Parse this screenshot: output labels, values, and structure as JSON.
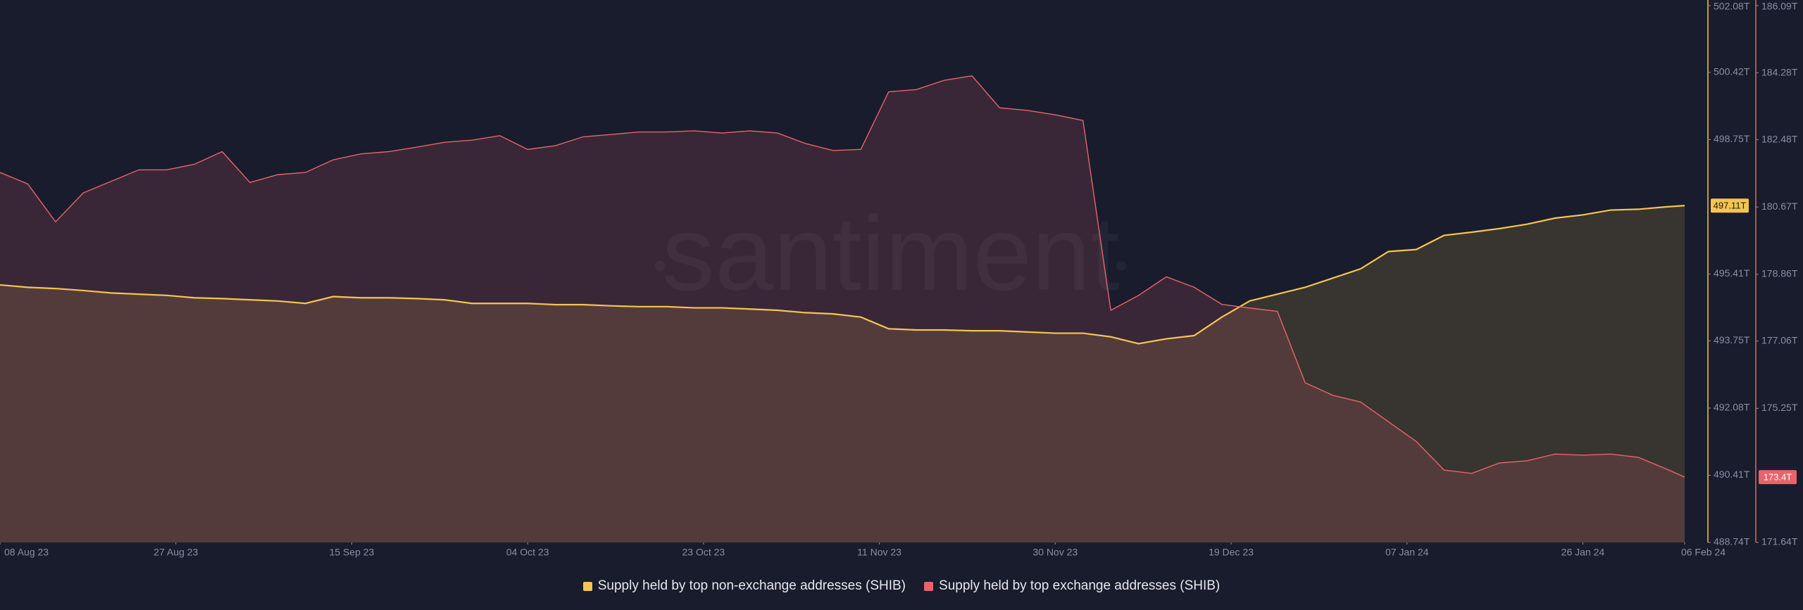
{
  "chart_data": {
    "type": "area",
    "watermark": "santiment",
    "x": [
      "2023-08-08",
      "2023-08-11",
      "2023-08-14",
      "2023-08-17",
      "2023-08-20",
      "2023-08-23",
      "2023-08-26",
      "2023-08-29",
      "2023-09-01",
      "2023-09-04",
      "2023-09-07",
      "2023-09-10",
      "2023-09-13",
      "2023-09-16",
      "2023-09-19",
      "2023-09-22",
      "2023-09-25",
      "2023-09-28",
      "2023-10-01",
      "2023-10-04",
      "2023-10-07",
      "2023-10-10",
      "2023-10-13",
      "2023-10-16",
      "2023-10-19",
      "2023-10-22",
      "2023-10-25",
      "2023-10-28",
      "2023-10-31",
      "2023-11-03",
      "2023-11-06",
      "2023-11-09",
      "2023-11-12",
      "2023-11-15",
      "2023-11-18",
      "2023-11-21",
      "2023-11-24",
      "2023-11-27",
      "2023-11-30",
      "2023-12-03",
      "2023-12-06",
      "2023-12-09",
      "2023-12-12",
      "2023-12-15",
      "2023-12-18",
      "2023-12-21",
      "2023-12-24",
      "2023-12-27",
      "2023-12-30",
      "2024-01-02",
      "2024-01-05",
      "2024-01-08",
      "2024-01-11",
      "2024-01-14",
      "2024-01-17",
      "2024-01-20",
      "2024-01-23",
      "2024-01-26",
      "2024-01-29",
      "2024-02-01",
      "2024-02-04",
      "2024-02-06"
    ],
    "xlim": [
      "2023-08-08",
      "2024-02-06"
    ],
    "xticks": [
      {
        "value": "2023-08-08",
        "label": "08 Aug 23"
      },
      {
        "value": "2023-08-27",
        "label": "27 Aug 23"
      },
      {
        "value": "2023-09-15",
        "label": "15 Sep 23"
      },
      {
        "value": "2023-10-04",
        "label": "04 Oct 23"
      },
      {
        "value": "2023-10-23",
        "label": "23 Oct 23"
      },
      {
        "value": "2023-11-11",
        "label": "11 Nov 23"
      },
      {
        "value": "2023-11-30",
        "label": "30 Nov 23"
      },
      {
        "value": "2023-12-19",
        "label": "19 Dec 23"
      },
      {
        "value": "2024-01-07",
        "label": "07 Jan 24"
      },
      {
        "value": "2024-01-26",
        "label": "26 Jan 24"
      },
      {
        "value": "2024-02-06",
        "label": "06 Feb 24"
      }
    ],
    "ylim": [
      488.74,
      502.08
    ],
    "yticks": [
      {
        "value": 502.08,
        "label": "502.08T"
      },
      {
        "value": 500.42,
        "label": "500.42T"
      },
      {
        "value": 498.75,
        "label": "498.75T"
      },
      {
        "value": 495.41,
        "label": "495.41T"
      },
      {
        "value": 493.75,
        "label": "493.75T"
      },
      {
        "value": 492.08,
        "label": "492.08T"
      },
      {
        "value": 490.41,
        "label": "490.41T"
      },
      {
        "value": 488.74,
        "label": "488.74T"
      }
    ],
    "y2lim": [
      171.64,
      186.09
    ],
    "y2ticks": [
      {
        "value": 186.09,
        "label": "186.09T"
      },
      {
        "value": 184.28,
        "label": "184.28T"
      },
      {
        "value": 182.48,
        "label": "182.48T"
      },
      {
        "value": 180.67,
        "label": "180.67T"
      },
      {
        "value": 178.86,
        "label": "178.86T"
      },
      {
        "value": 177.06,
        "label": "177.06T"
      },
      {
        "value": 175.25,
        "label": "175.25T"
      },
      {
        "value": 171.64,
        "label": "171.64T"
      }
    ],
    "series": [
      {
        "name": "Supply held by top non-exchange addresses (SHIB)",
        "color": "#f5c451",
        "axis": "y",
        "values": [
          495.14,
          495.08,
          495.05,
          495.0,
          494.94,
          494.91,
          494.88,
          494.82,
          494.8,
          494.77,
          494.74,
          494.68,
          494.85,
          494.82,
          494.82,
          494.8,
          494.77,
          494.68,
          494.68,
          494.68,
          494.65,
          494.65,
          494.62,
          494.6,
          494.6,
          494.57,
          494.57,
          494.54,
          494.51,
          494.45,
          494.42,
          494.34,
          494.05,
          494.02,
          494.02,
          494.0,
          494.0,
          493.97,
          493.94,
          493.94,
          493.85,
          493.68,
          493.8,
          493.88,
          494.34,
          494.74,
          494.91,
          495.08,
          495.31,
          495.54,
          495.97,
          496.02,
          496.37,
          496.45,
          496.54,
          496.65,
          496.8,
          496.88,
          497.0,
          497.02,
          497.08,
          497.11
        ],
        "value_labels": [
          null,
          null,
          null,
          null,
          null,
          null,
          null,
          null,
          null,
          null,
          null,
          null,
          null,
          null,
          null,
          null,
          null,
          null,
          null,
          null,
          null,
          null,
          null,
          null,
          null,
          null,
          null,
          null,
          null,
          null,
          null,
          null,
          null,
          null,
          null,
          null,
          null,
          null,
          null,
          null,
          null,
          null,
          null,
          null,
          null,
          null,
          null,
          null,
          null,
          null,
          null,
          null,
          null,
          null,
          null,
          null,
          null,
          null,
          null,
          null,
          null,
          "497.11T"
        ]
      },
      {
        "name": "Supply held by top exchange addresses (SHIB)",
        "color": "#e8636a",
        "axis": "y2",
        "values": [
          181.6,
          181.29,
          180.27,
          181.05,
          181.36,
          181.67,
          181.67,
          181.82,
          182.16,
          181.33,
          181.54,
          181.6,
          181.94,
          182.1,
          182.16,
          182.28,
          182.41,
          182.47,
          182.59,
          182.22,
          182.32,
          182.56,
          182.62,
          182.69,
          182.69,
          182.72,
          182.66,
          182.72,
          182.66,
          182.38,
          182.19,
          182.22,
          183.77,
          183.83,
          184.08,
          184.2,
          183.34,
          183.27,
          183.15,
          183.0,
          177.89,
          178.29,
          178.79,
          178.51,
          178.05,
          177.95,
          177.86,
          175.94,
          175.6,
          175.42,
          174.89,
          174.36,
          173.59,
          173.5,
          173.78,
          173.84,
          174.02,
          173.99,
          174.02,
          173.93,
          173.62,
          173.4
        ],
        "value_labels": [
          null,
          null,
          null,
          null,
          null,
          null,
          null,
          null,
          null,
          null,
          null,
          null,
          null,
          null,
          null,
          null,
          null,
          null,
          null,
          null,
          null,
          null,
          null,
          null,
          null,
          null,
          null,
          null,
          null,
          null,
          null,
          null,
          null,
          null,
          null,
          null,
          null,
          null,
          null,
          null,
          null,
          null,
          null,
          null,
          null,
          null,
          null,
          null,
          null,
          null,
          null,
          null,
          null,
          null,
          null,
          null,
          null,
          null,
          null,
          null,
          null,
          "173.4T"
        ]
      }
    ]
  }
}
